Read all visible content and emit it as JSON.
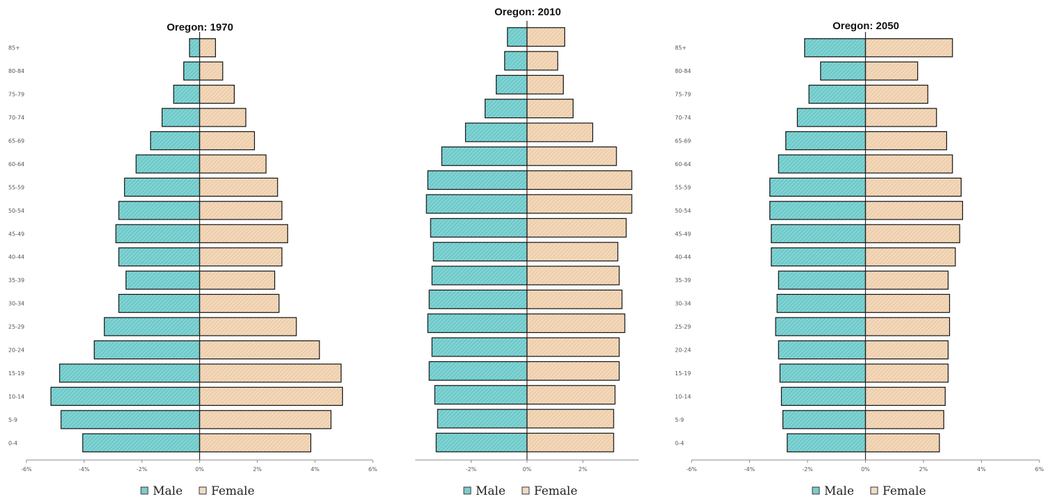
{
  "colors": {
    "male": "#7fd3d3",
    "female": "#f3d7b8",
    "male_legend": "#7fcccc",
    "female_legend": "#efdcc6"
  },
  "chart_data": [
    {
      "type": "bar",
      "orientation": "horizontal-pyramid",
      "title": "Oregon: 1970",
      "categories": [
        "0-4",
        "5-9",
        "10-14",
        "15-19",
        "20-24",
        "25-29",
        "30-34",
        "35-39",
        "40-44",
        "45-49",
        "50-54",
        "55-59",
        "60-64",
        "65-69",
        "70-74",
        "75-79",
        "80-84",
        "85+"
      ],
      "series": [
        {
          "name": "Male",
          "values": [
            -4.05,
            -4.8,
            -5.15,
            -4.85,
            -3.65,
            -3.3,
            -2.8,
            -2.55,
            -2.8,
            -2.9,
            -2.8,
            -2.6,
            -2.2,
            -1.7,
            -1.3,
            -0.9,
            -0.55,
            -0.35
          ]
        },
        {
          "name": "Female",
          "values": [
            3.85,
            4.55,
            4.95,
            4.9,
            4.15,
            3.35,
            2.75,
            2.6,
            2.85,
            3.05,
            2.85,
            2.7,
            2.3,
            1.9,
            1.6,
            1.2,
            0.8,
            0.55
          ]
        }
      ],
      "xlim": [
        -6,
        6
      ],
      "xticks": [
        "-6%",
        "-4%",
        "-2%",
        "0%",
        "2%",
        "4%",
        "6%"
      ],
      "legend": [
        "Male",
        "Female"
      ],
      "legend_position": "bottom"
    },
    {
      "type": "bar",
      "orientation": "horizontal-pyramid",
      "title": "Oregon: 2010",
      "categories": [
        "0-4",
        "5-9",
        "10-14",
        "15-19",
        "20-24",
        "25-29",
        "30-34",
        "35-39",
        "40-44",
        "45-49",
        "50-54",
        "55-59",
        "60-64",
        "65-69",
        "70-74",
        "75-79",
        "80-84",
        "85+"
      ],
      "series": [
        {
          "name": "Male",
          "values": [
            -3.25,
            -3.2,
            -3.3,
            -3.5,
            -3.4,
            -3.55,
            -3.5,
            -3.4,
            -3.35,
            -3.45,
            -3.6,
            -3.55,
            -3.05,
            -2.2,
            -1.5,
            -1.1,
            -0.8,
            -0.7
          ]
        },
        {
          "name": "Female",
          "values": [
            3.1,
            3.1,
            3.15,
            3.3,
            3.3,
            3.5,
            3.4,
            3.3,
            3.25,
            3.55,
            3.75,
            3.75,
            3.2,
            2.35,
            1.65,
            1.3,
            1.1,
            1.35
          ]
        }
      ],
      "xlim": [
        -4,
        4
      ],
      "xticks": [
        "-2%",
        "0%",
        "2%"
      ],
      "legend": [
        "Male",
        "Female"
      ],
      "legend_position": "bottom"
    },
    {
      "type": "bar",
      "orientation": "horizontal-pyramid",
      "title": "Oregon: 2050",
      "categories": [
        "0-4",
        "5-9",
        "10-14",
        "15-19",
        "20-24",
        "25-29",
        "30-34",
        "35-39",
        "40-44",
        "45-49",
        "50-54",
        "55-59",
        "60-64",
        "65-69",
        "70-74",
        "75-79",
        "80-84",
        "85+"
      ],
      "series": [
        {
          "name": "Male",
          "values": [
            -2.7,
            -2.85,
            -2.9,
            -2.95,
            -3.0,
            -3.1,
            -3.05,
            -3.0,
            -3.25,
            -3.25,
            -3.3,
            -3.3,
            -3.0,
            -2.75,
            -2.35,
            -1.95,
            -1.55,
            -2.1
          ]
        },
        {
          "name": "Female",
          "values": [
            2.55,
            2.7,
            2.75,
            2.85,
            2.85,
            2.9,
            2.9,
            2.85,
            3.1,
            3.25,
            3.35,
            3.3,
            3.0,
            2.8,
            2.45,
            2.15,
            1.8,
            3.0
          ]
        }
      ],
      "xlim": [
        -6,
        6
      ],
      "xticks": [
        "-6%",
        "-4%",
        "-2%",
        "0%",
        "2%",
        "4%",
        "6%"
      ],
      "legend": [
        "Male",
        "Female"
      ],
      "legend_position": "bottom"
    }
  ]
}
